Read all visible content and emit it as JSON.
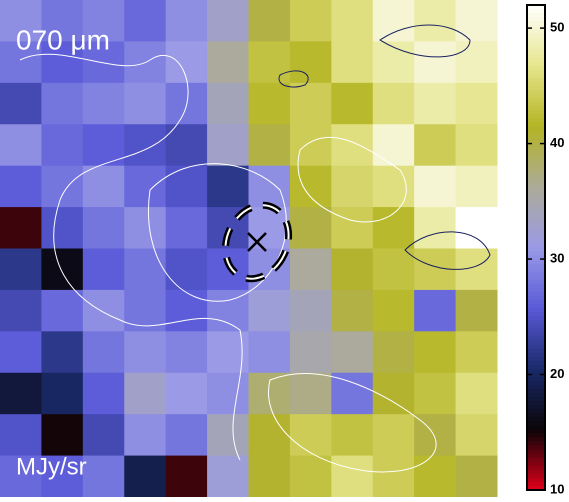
{
  "chart_data": {
    "type": "heatmap",
    "title": "070 μm",
    "unit_label": "MJy/sr",
    "z": [
      [
        30,
        28,
        29,
        27,
        30,
        33,
        40,
        44,
        46,
        50,
        48,
        50
      ],
      [
        28,
        26,
        27,
        29,
        31,
        36,
        43,
        42,
        46,
        48,
        50,
        49
      ],
      [
        24,
        28,
        29,
        30,
        28,
        34,
        42,
        44,
        42,
        46,
        48,
        47
      ],
      [
        30,
        27,
        26,
        25,
        24,
        33,
        40,
        44,
        46,
        50,
        44,
        46
      ],
      [
        26,
        28,
        30,
        27,
        25,
        22,
        30,
        42,
        45,
        46,
        50,
        49
      ],
      [
        14,
        25,
        28,
        30,
        27,
        24,
        31,
        40,
        44,
        42,
        48,
        52
      ],
      [
        22,
        16,
        26,
        28,
        25,
        26,
        30,
        36,
        41,
        43,
        44,
        46
      ],
      [
        24,
        27,
        30,
        28,
        26,
        29,
        32,
        34,
        40,
        42,
        27,
        40
      ],
      [
        26,
        22,
        28,
        30,
        29,
        31,
        30,
        35,
        36,
        40,
        42,
        44
      ],
      [
        18,
        20,
        26,
        33,
        31,
        30,
        38,
        37,
        28,
        41,
        43,
        46
      ],
      [
        25,
        15,
        24,
        30,
        28,
        34,
        41,
        44,
        43,
        44,
        40,
        45
      ],
      [
        27,
        26,
        28,
        19,
        14,
        32,
        41,
        43,
        46,
        44,
        42,
        40
      ]
    ],
    "zlim": [
      10,
      52
    ],
    "zticks": [
      10,
      20,
      30,
      40,
      50
    ],
    "colormap": [
      "#e0001a",
      "#0a0508",
      "#1a2a6a",
      "#5a5ad8",
      "#9a9ae6",
      "#acab98",
      "#b4b424",
      "#e6e68e",
      "#ffffff"
    ]
  }
}
